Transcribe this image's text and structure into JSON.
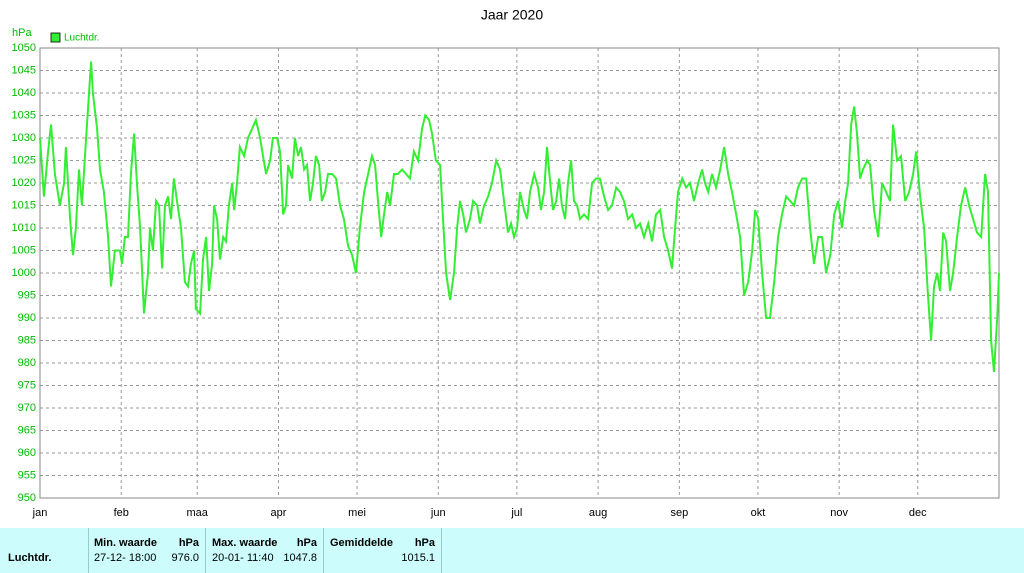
{
  "chart_data": {
    "type": "line",
    "title": "Jaar 2020",
    "y_label": "hPa",
    "xlim": [
      0,
      366
    ],
    "ylim": [
      950,
      1050
    ],
    "xticks": [
      {
        "value": 0,
        "label": "jan"
      },
      {
        "value": 31,
        "label": "feb"
      },
      {
        "value": 60,
        "label": "maa"
      },
      {
        "value": 91,
        "label": "apr"
      },
      {
        "value": 121,
        "label": "mei"
      },
      {
        "value": 152,
        "label": "jun"
      },
      {
        "value": 182,
        "label": "jul"
      },
      {
        "value": 213,
        "label": "aug"
      },
      {
        "value": 244,
        "label": "sep"
      },
      {
        "value": 274,
        "label": "okt"
      },
      {
        "value": 305,
        "label": "nov"
      },
      {
        "value": 335,
        "label": "dec"
      }
    ],
    "yticks": [
      950,
      955,
      960,
      965,
      970,
      975,
      980,
      985,
      990,
      995,
      1000,
      1005,
      1010,
      1015,
      1020,
      1025,
      1030,
      1035,
      1040,
      1045,
      1050
    ],
    "grid": true,
    "x": [
      0,
      1.5,
      3.1,
      4.2,
      5.7,
      7.6,
      9.2,
      9.9,
      11.5,
      12.6,
      13.7,
      14.9,
      16,
      17.6,
      19.5,
      20.2,
      21.8,
      22.9,
      24.4,
      26,
      27.1,
      28.6,
      30.5,
      31.3,
      32.4,
      33.6,
      34.7,
      35.9,
      37,
      38.2,
      39.7,
      41.2,
      42,
      43.1,
      44.3,
      45.4,
      46.6,
      47.7,
      48.9,
      50,
      51.1,
      52.3,
      53.8,
      55.3,
      56.5,
      57.6,
      58.8,
      59.5,
      61.1,
      62.2,
      63.4,
      64.5,
      65.7,
      66.4,
      67.6,
      68.7,
      69.9,
      71,
      72.1,
      73.3,
      74.1,
      75.2,
      76.3,
      77.9,
      79.4,
      80.9,
      82.4,
      84,
      85.1,
      86.3,
      87.8,
      88.9,
      90.5,
      91.6,
      92.8,
      93.9,
      94.7,
      96.2,
      97.3,
      98.5,
      99.6,
      100.8,
      101.9,
      103.1,
      104.2,
      105.3,
      106.5,
      107.6,
      108.8,
      109.9,
      111.5,
      113,
      114.5,
      116,
      117.6,
      119.1,
      120.6,
      122.1,
      123.7,
      125.2,
      126.7,
      127.9,
      129,
      130.2,
      131.3,
      132.5,
      133.6,
      135.1,
      136.6,
      138.2,
      139.7,
      141.2,
      142.7,
      144.3,
      145.8,
      147,
      148.5,
      149.6,
      151.1,
      152.7,
      153.8,
      155,
      156.5,
      158,
      159.2,
      160.3,
      161.5,
      162.6,
      164.1,
      165.3,
      166.8,
      167.9,
      169.5,
      171,
      172.5,
      174.1,
      175.6,
      177.1,
      178.6,
      179.8,
      180.9,
      182.1,
      183.2,
      184.7,
      185.9,
      187,
      188.6,
      190.1,
      191.2,
      192.4,
      193.5,
      194.7,
      195.8,
      197,
      198.1,
      199.2,
      200.4,
      201.5,
      202.7,
      203.8,
      205,
      206.1,
      207.6,
      209.2,
      210.7,
      212.2,
      213.7,
      215.3,
      216.8,
      218.3,
      219.9,
      221.4,
      222.9,
      224.4,
      226,
      227.5,
      229,
      230.5,
      232.1,
      233.6,
      235.1,
      236.7,
      238.2,
      239.7,
      241.2,
      242.4,
      243.5,
      245.1,
      246.6,
      248.1,
      249.6,
      251.2,
      252.7,
      253.8,
      255,
      256.5,
      258,
      259.6,
      261.1,
      262.6,
      264.1,
      265.7,
      267.2,
      268.7,
      270.3,
      271.8,
      272.9,
      274.1,
      275.6,
      277.1,
      278.6,
      280.2,
      281.7,
      283.2,
      284.8,
      286.3,
      287.8,
      289.3,
      290.9,
      292.4,
      293.9,
      295.4,
      297,
      298.5,
      300,
      301.6,
      303.1,
      304.6,
      306.1,
      307.3,
      308.4,
      309.6,
      310.7,
      311.8,
      313,
      314.1,
      315.7,
      316.8,
      318.3,
      319.9,
      321.4,
      322.9,
      324.4,
      325.6,
      327.1,
      328.6,
      330.2,
      331.7,
      333.2,
      334.4,
      335.9,
      337.4,
      338.9,
      340.1,
      341.2,
      342.4,
      343.5,
      344.7,
      345.8,
      347.3,
      348.5,
      350,
      351.5,
      353.1,
      354.6,
      356.1,
      357.6,
      359.2,
      360.7,
      361.8,
      363,
      364.1,
      365.3,
      366
    ],
    "series": [
      {
        "name": "Luchtdr.",
        "color": "#33ee33",
        "values": [
          1030,
          1017,
          1027,
          1033,
          1022,
          1015,
          1020,
          1028,
          1012,
          1004,
          1010,
          1023,
          1015,
          1030,
          1047,
          1040,
          1032,
          1023,
          1018,
          1008,
          997,
          1005,
          1005,
          1002,
          1008,
          1008,
          1022,
          1031,
          1020,
          1010,
          991,
          1000,
          1010,
          1005,
          1016,
          1015,
          1001,
          1015,
          1017,
          1012,
          1021,
          1016,
          1010,
          998,
          997,
          1002,
          1005,
          992,
          991,
          1003,
          1008,
          996,
          1002,
          1015,
          1012,
          1003,
          1008,
          1007,
          1015,
          1020,
          1014,
          1020,
          1028,
          1026,
          1030,
          1032,
          1034,
          1030,
          1026,
          1022,
          1025,
          1030,
          1030,
          1027,
          1013,
          1015,
          1024,
          1021,
          1030,
          1026,
          1028,
          1023,
          1024,
          1016,
          1020,
          1026,
          1024,
          1016,
          1018,
          1022,
          1022,
          1021,
          1015,
          1012,
          1006,
          1004,
          1000,
          1010,
          1018,
          1022,
          1026,
          1024,
          1016,
          1008,
          1013,
          1018,
          1015,
          1022,
          1022,
          1023,
          1022,
          1021,
          1027,
          1025,
          1032,
          1035,
          1034,
          1031,
          1025,
          1024,
          1012,
          1000,
          994,
          1000,
          1010,
          1016,
          1013,
          1009,
          1012,
          1016,
          1015,
          1011,
          1015,
          1017,
          1020,
          1025,
          1023,
          1016,
          1009,
          1011,
          1008,
          1010,
          1018,
          1014,
          1012,
          1018,
          1022,
          1019,
          1014,
          1018,
          1028,
          1020,
          1014,
          1016,
          1021,
          1015,
          1012,
          1020,
          1025,
          1016,
          1015,
          1012,
          1013,
          1012,
          1020,
          1021,
          1021,
          1017,
          1014,
          1015,
          1019,
          1018,
          1016,
          1012,
          1013,
          1010,
          1011,
          1008,
          1011,
          1007,
          1013,
          1014,
          1008,
          1005,
          1001,
          1010,
          1018,
          1021,
          1019,
          1020,
          1016,
          1020,
          1023,
          1020,
          1018,
          1022,
          1019,
          1023,
          1028,
          1022,
          1018,
          1013,
          1008,
          995,
          998,
          1005,
          1014,
          1012,
          1000,
          990,
          990,
          998,
          1008,
          1013,
          1017,
          1016,
          1015,
          1019,
          1021,
          1021,
          1010,
          1002,
          1008,
          1008,
          1000,
          1004,
          1013,
          1016,
          1010,
          1016,
          1020,
          1033,
          1037,
          1031,
          1021,
          1023,
          1025,
          1024,
          1014,
          1008,
          1020,
          1018,
          1016,
          1033,
          1025,
          1026,
          1016,
          1018,
          1022,
          1027,
          1017,
          1010,
          995,
          985,
          997,
          1000,
          996,
          1009,
          1007,
          996,
          1000,
          1008,
          1015,
          1019,
          1015,
          1012,
          1009,
          1008,
          1022,
          1018,
          985,
          978,
          990,
          1000
        ]
      }
    ]
  },
  "table": {
    "row_header": "Luchtdr.",
    "columns": [
      {
        "header": "Min. waarde",
        "unit": "hPa",
        "time": "27-12- 18:00",
        "value": "976.0"
      },
      {
        "header": "Max. waarde",
        "unit": "hPa",
        "time": "20-01- 11:40",
        "value": "1047.8"
      },
      {
        "header": "Gemiddelde",
        "unit": "hPa",
        "value": "1015.1"
      }
    ]
  }
}
